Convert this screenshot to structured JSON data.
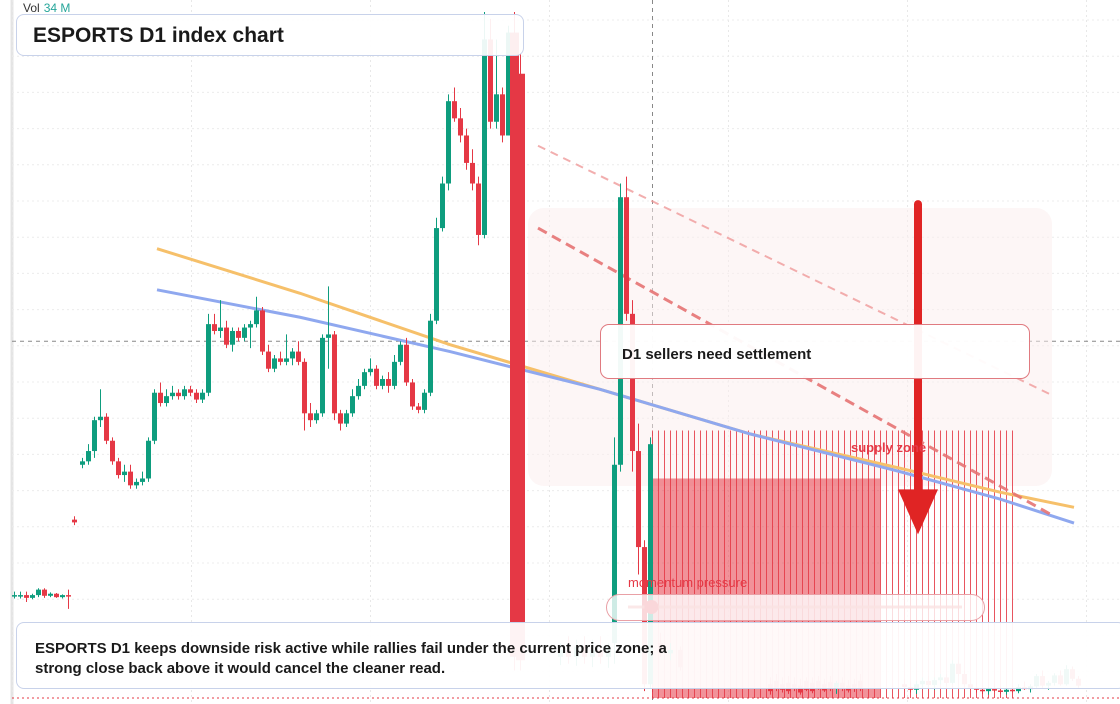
{
  "volume": {
    "label": "Vol",
    "value": "34 M"
  },
  "chart_title": "ESPORTS D1 index chart",
  "callout_text": "D1 sellers need settlement",
  "zone_labels": {
    "supply": "supply zone",
    "momentum": "momentum pressure"
  },
  "note_text": "ESPORTS D1 keeps downside risk active while rallies fail under the current price zone; a strong close back above it would cancel the cleaner read.",
  "slider_level": 0.07,
  "colors": {
    "up": "#0e9d7e",
    "down": "#e53845",
    "ma_orange": "#f6c06a",
    "ma_blue": "#8fa8ef",
    "arrow": "#e02424"
  },
  "chart_data": {
    "type": "candlestick",
    "title": "ESPORTS D1 index chart",
    "ylim": [
      0,
      100
    ],
    "xlim": [
      0,
      1000
    ],
    "current_price": 52,
    "candles": [
      [
        14,
        15,
        15.5,
        14.5,
        15
      ],
      [
        20,
        15,
        15.5,
        14.5,
        15
      ],
      [
        26,
        15,
        15.5,
        14,
        14.6
      ],
      [
        32,
        14.6,
        15.2,
        14.4,
        15
      ],
      [
        38,
        15,
        16,
        14.7,
        15.8
      ],
      [
        44,
        15.8,
        16,
        14.6,
        14.9
      ],
      [
        50,
        14.9,
        15.4,
        14.7,
        15.2
      ],
      [
        56,
        15.2,
        15.3,
        14.6,
        14.7
      ],
      [
        62,
        14.7,
        15.1,
        14.5,
        15
      ],
      [
        68,
        15,
        15.8,
        13,
        14.8
      ],
      [
        74,
        26,
        26.5,
        25.2,
        25.6
      ],
      [
        82,
        34,
        35,
        33.5,
        34.5
      ],
      [
        88,
        34.5,
        37,
        34,
        36
      ],
      [
        94,
        36,
        41,
        35,
        40.5
      ],
      [
        100,
        40.5,
        45,
        39.5,
        41
      ],
      [
        106,
        41,
        41.5,
        37,
        37.5
      ],
      [
        112,
        37.5,
        38,
        34,
        34.5
      ],
      [
        118,
        34.5,
        35,
        32,
        32.5
      ],
      [
        124,
        32.5,
        34,
        31.5,
        33
      ],
      [
        130,
        33,
        34,
        30.5,
        31
      ],
      [
        136,
        31,
        32,
        30.5,
        31.5
      ],
      [
        142,
        31.5,
        33,
        31,
        32
      ],
      [
        148,
        32,
        38,
        31.5,
        37.5
      ],
      [
        154,
        37.5,
        45,
        37,
        44.5
      ],
      [
        160,
        44.5,
        46,
        42.5,
        43
      ],
      [
        166,
        43,
        45,
        42.5,
        44
      ],
      [
        172,
        44,
        45.5,
        43.5,
        44.5
      ],
      [
        178,
        44.5,
        45,
        43.5,
        44
      ],
      [
        184,
        44,
        45.5,
        43.5,
        45
      ],
      [
        190,
        45,
        45.5,
        44,
        44.5
      ],
      [
        196,
        44.5,
        45,
        43,
        43.5
      ],
      [
        202,
        43.5,
        45,
        43,
        44.5
      ],
      [
        208,
        44.5,
        56,
        44,
        54.5
      ],
      [
        214,
        54.5,
        56,
        53,
        53.5
      ],
      [
        220,
        53.5,
        58,
        52.5,
        54
      ],
      [
        226,
        54,
        55,
        51,
        51.5
      ],
      [
        232,
        51.5,
        54,
        50.5,
        53.5
      ],
      [
        238,
        53.5,
        54,
        52,
        52.5
      ],
      [
        244,
        52.5,
        54.5,
        52,
        54
      ],
      [
        250,
        54,
        55,
        51,
        54.5
      ],
      [
        256,
        54.5,
        58.5,
        54,
        56.5
      ],
      [
        262,
        56.5,
        57,
        50,
        50.5
      ],
      [
        268,
        50.5,
        51.5,
        47.5,
        48
      ],
      [
        274,
        48,
        50,
        47.5,
        49.5
      ],
      [
        280,
        49.5,
        50.5,
        48.5,
        49
      ],
      [
        286,
        49,
        53,
        48.5,
        49.5
      ],
      [
        292,
        49.5,
        51,
        48.5,
        50.5
      ],
      [
        298,
        50.5,
        52,
        48.5,
        49
      ],
      [
        304,
        49,
        49.5,
        39,
        41.5
      ],
      [
        310,
        41.5,
        43,
        39.5,
        40.5
      ],
      [
        316,
        40.5,
        42,
        40,
        41.5
      ],
      [
        322,
        41.5,
        53,
        41,
        52.5
      ],
      [
        328,
        52.5,
        60,
        48,
        53
      ],
      [
        334,
        53,
        53.5,
        40.5,
        41.5
      ],
      [
        340,
        41.5,
        42,
        39,
        40
      ],
      [
        346,
        40,
        42,
        39.5,
        41.5
      ],
      [
        352,
        41.5,
        45,
        41,
        44
      ],
      [
        358,
        44,
        46.5,
        43.5,
        45.5
      ],
      [
        364,
        45.5,
        48,
        45,
        47.5
      ],
      [
        370,
        47.5,
        49.5,
        47,
        48
      ],
      [
        376,
        48,
        48.5,
        45,
        45.5
      ],
      [
        382,
        45.5,
        47,
        45,
        46.5
      ],
      [
        388,
        46.5,
        47.5,
        44.5,
        45.5
      ],
      [
        394,
        45.5,
        50,
        45,
        49
      ],
      [
        400,
        49,
        52,
        48.5,
        51.5
      ],
      [
        406,
        51.5,
        52.5,
        45.5,
        46
      ],
      [
        412,
        46,
        46.5,
        42,
        42.5
      ],
      [
        418,
        42.5,
        43,
        41.5,
        42
      ],
      [
        424,
        42,
        45,
        41.5,
        44.5
      ],
      [
        430,
        44.5,
        56,
        44,
        55
      ],
      [
        436,
        55,
        70,
        54.5,
        68.5
      ],
      [
        442,
        68.5,
        76,
        68,
        75
      ],
      [
        448,
        75,
        88,
        74,
        87
      ],
      [
        454,
        87,
        89,
        84,
        84.5
      ],
      [
        460,
        84.5,
        86,
        81,
        82
      ],
      [
        466,
        82,
        83,
        77,
        78
      ],
      [
        472,
        78,
        80,
        74,
        75
      ],
      [
        478,
        75,
        76,
        66,
        67.5
      ],
      [
        484,
        67.5,
        100,
        67,
        96
      ],
      [
        490,
        96,
        99,
        83,
        84
      ],
      [
        496,
        84,
        96,
        83,
        88
      ],
      [
        502,
        88,
        89,
        81,
        82
      ],
      [
        508,
        82,
        98,
        82,
        97
      ],
      [
        514,
        97,
        100,
        4,
        6
      ],
      [
        520,
        91,
        94,
        4,
        5.5
      ],
      [
        560,
        6,
        8,
        4.8,
        7
      ],
      [
        568,
        7,
        9,
        5,
        6
      ],
      [
        576,
        6,
        8.5,
        4.7,
        7.5
      ],
      [
        584,
        7.5,
        9,
        5,
        6
      ],
      [
        592,
        6,
        8.5,
        4.5,
        7
      ],
      [
        600,
        7,
        9,
        5,
        6
      ],
      [
        608,
        6,
        8,
        4.4,
        7.5
      ],
      [
        614,
        8,
        38,
        5,
        34
      ],
      [
        620,
        34,
        75,
        33,
        73
      ],
      [
        626,
        73,
        76,
        55,
        56
      ],
      [
        632,
        56,
        58,
        33,
        36
      ],
      [
        638,
        36,
        40,
        18,
        22
      ],
      [
        644,
        22,
        23,
        1,
        2
      ],
      [
        650,
        2,
        38,
        1.5,
        37
      ],
      [
        660,
        8,
        9.5,
        6,
        6.5
      ],
      [
        670,
        6.5,
        8,
        5.5,
        7
      ],
      [
        680,
        7,
        7.5,
        4,
        4.5
      ],
      [
        770,
        2,
        3,
        0.5,
        1
      ],
      [
        776,
        2.5,
        3.5,
        1,
        1.5
      ],
      [
        782,
        2,
        3,
        0.8,
        1.2
      ],
      [
        788,
        2.2,
        3.2,
        0.6,
        1
      ],
      [
        794,
        2,
        3,
        1,
        1.5
      ],
      [
        800,
        1.8,
        2.8,
        0.5,
        0.8
      ],
      [
        806,
        2.5,
        3,
        1,
        1.2
      ],
      [
        812,
        2.2,
        3,
        0.7,
        1
      ],
      [
        818,
        2.5,
        3.2,
        1.2,
        1.4
      ],
      [
        824,
        2,
        2.8,
        0.9,
        1.1
      ],
      [
        830,
        2.3,
        3.2,
        1,
        1.3
      ],
      [
        836,
        1.5,
        2.5,
        0.6,
        2.2
      ],
      [
        842,
        2.2,
        3,
        1,
        1.4
      ],
      [
        848,
        1.8,
        2.6,
        0.8,
        1.1
      ],
      [
        854,
        2,
        2.8,
        0.9,
        1.5
      ],
      [
        860,
        2.5,
        3.5,
        1,
        1.3
      ],
      [
        904,
        2,
        2.8,
        1.2,
        1.6
      ],
      [
        910,
        1.6,
        2.4,
        0.8,
        1.2
      ],
      [
        916,
        1.2,
        2.5,
        0.6,
        2
      ],
      [
        922,
        2,
        3,
        1.3,
        2.5
      ],
      [
        928,
        2.5,
        3.2,
        1.5,
        1.9
      ],
      [
        934,
        1.9,
        3,
        1.2,
        2.6
      ],
      [
        940,
        2.6,
        3.5,
        2,
        3
      ],
      [
        946,
        3,
        3.5,
        1.8,
        2.2
      ],
      [
        952,
        2.2,
        5.5,
        2,
        5
      ],
      [
        958,
        5,
        6,
        3.2,
        3.5
      ],
      [
        964,
        3.5,
        4,
        1.6,
        2
      ],
      [
        970,
        2,
        2.6,
        1.2,
        1.5
      ],
      [
        976,
        1.5,
        2.2,
        0.8,
        1.2
      ],
      [
        982,
        1.2,
        1.8,
        0.6,
        1
      ],
      [
        988,
        1,
        1.6,
        0.5,
        1.3
      ],
      [
        994,
        1.3,
        2,
        0.9,
        1.1
      ],
      [
        1000,
        1.1,
        1.7,
        0.6,
        0.9
      ],
      [
        1006,
        0.9,
        1.5,
        0.5,
        1.2
      ],
      [
        1012,
        1.2,
        1.8,
        0.8,
        1
      ],
      [
        1018,
        1,
        2,
        0.7,
        1.6
      ],
      [
        1024,
        1.6,
        2.4,
        1.2,
        1.3
      ],
      [
        1030,
        1.3,
        2,
        0.8,
        1.7
      ],
      [
        1036,
        1.7,
        3.5,
        1.5,
        3.2
      ],
      [
        1042,
        3.2,
        4,
        1.5,
        1.8
      ],
      [
        1048,
        1.8,
        2.5,
        1.2,
        2.2
      ],
      [
        1054,
        2.2,
        3.6,
        1.8,
        3.3
      ],
      [
        1060,
        3.3,
        4,
        1.8,
        2
      ],
      [
        1066,
        2,
        4.8,
        1.8,
        4.2
      ],
      [
        1072,
        4.2,
        4.6,
        2.5,
        2.8
      ],
      [
        1078,
        2.8,
        3.2,
        1.5,
        1.8
      ]
    ],
    "ma_orange": [
      [
        157,
        65.5
      ],
      [
        300,
        59
      ],
      [
        450,
        51.5
      ],
      [
        600,
        45
      ],
      [
        750,
        38.5
      ],
      [
        900,
        33.5
      ],
      [
        1000,
        30
      ],
      [
        1074,
        27.8
      ]
    ],
    "ma_blue": [
      [
        157,
        59.5
      ],
      [
        300,
        55.5
      ],
      [
        450,
        50.5
      ],
      [
        600,
        45
      ],
      [
        750,
        38.5
      ],
      [
        900,
        33
      ],
      [
        1000,
        29
      ],
      [
        1074,
        25.5
      ]
    ],
    "dashed_trend": [
      [
        538,
        68.5
      ],
      [
        1054,
        26.5
      ]
    ],
    "faint_trend": [
      [
        538,
        80.5
      ],
      [
        1054,
        44
      ]
    ],
    "supply_zone": {
      "x_start": 652,
      "x_end": 1012,
      "y_top": 39,
      "y_fill_top": 32,
      "y_bottom": 0
    },
    "arrow": {
      "x": 918,
      "y_from": 72,
      "y_to": 24
    }
  }
}
